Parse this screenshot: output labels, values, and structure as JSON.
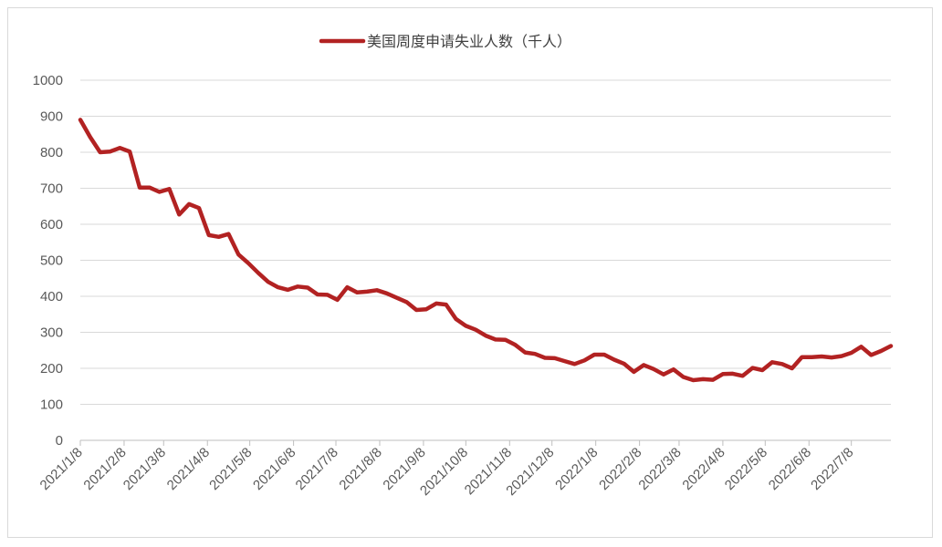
{
  "chart_data": {
    "type": "line",
    "legend_position": "top-center",
    "grid": "horizontal",
    "ylim": [
      0,
      1000
    ],
    "yticks": [
      "0",
      "100",
      "200",
      "300",
      "400",
      "500",
      "600",
      "700",
      "800",
      "900",
      "1000"
    ],
    "xtick_labels": [
      "2021/1/8",
      "2021/2/8",
      "2021/3/8",
      "2021/4/8",
      "2021/5/8",
      "2021/6/8",
      "2021/7/8",
      "2021/8/8",
      "2021/9/8",
      "2021/10/8",
      "2021/11/8",
      "2021/12/8",
      "2022/1/8",
      "2022/2/8",
      "2022/3/8",
      "2022/4/8",
      "2022/5/8",
      "2022/6/8",
      "2022/7/8"
    ],
    "series": [
      {
        "name": "美国周度申请失业人数（千人）",
        "color": "#B22222",
        "x": [
          "2021/1/8",
          "2021/1/15",
          "2021/1/22",
          "2021/1/29",
          "2021/2/5",
          "2021/2/12",
          "2021/2/19",
          "2021/2/26",
          "2021/3/5",
          "2021/3/12",
          "2021/3/19",
          "2021/3/26",
          "2021/4/2",
          "2021/4/9",
          "2021/4/16",
          "2021/4/23",
          "2021/4/30",
          "2021/5/7",
          "2021/5/14",
          "2021/5/21",
          "2021/5/28",
          "2021/6/4",
          "2021/6/11",
          "2021/6/18",
          "2021/6/25",
          "2021/7/2",
          "2021/7/9",
          "2021/7/16",
          "2021/7/23",
          "2021/7/30",
          "2021/8/6",
          "2021/8/13",
          "2021/8/20",
          "2021/8/27",
          "2021/9/3",
          "2021/9/10",
          "2021/9/17",
          "2021/9/24",
          "2021/10/1",
          "2021/10/8",
          "2021/10/15",
          "2021/10/22",
          "2021/10/29",
          "2021/11/5",
          "2021/11/12",
          "2021/11/19",
          "2021/11/26",
          "2021/12/3",
          "2021/12/10",
          "2021/12/17",
          "2021/12/24",
          "2021/12/31",
          "2022/1/7",
          "2022/1/14",
          "2022/1/21",
          "2022/1/28",
          "2022/2/4",
          "2022/2/11",
          "2022/2/18",
          "2022/2/25",
          "2022/3/4",
          "2022/3/11",
          "2022/3/18",
          "2022/3/25",
          "2022/4/1",
          "2022/4/8",
          "2022/4/15",
          "2022/4/22",
          "2022/4/29",
          "2022/5/6",
          "2022/5/13",
          "2022/5/20",
          "2022/5/27",
          "2022/6/3",
          "2022/6/10",
          "2022/6/17",
          "2022/6/24",
          "2022/7/1",
          "2022/7/8",
          "2022/7/15",
          "2022/7/22",
          "2022/7/29",
          "2022/8/5"
        ],
        "values": [
          890,
          842,
          800,
          802,
          812,
          802,
          702,
          702,
          690,
          698,
          627,
          656,
          645,
          570,
          565,
          573,
          516,
          492,
          465,
          440,
          425,
          418,
          427,
          424,
          405,
          404,
          390,
          425,
          411,
          413,
          417,
          408,
          396,
          384,
          362,
          364,
          380,
          377,
          337,
          318,
          307,
          291,
          280,
          279,
          265,
          244,
          240,
          229,
          228,
          220,
          212,
          222,
          238,
          238,
          224,
          213,
          190,
          209,
          198,
          183,
          197,
          176,
          167,
          170,
          168,
          184,
          185,
          179,
          201,
          195,
          217,
          212,
          200,
          231,
          231,
          233,
          230,
          234,
          243,
          260,
          237,
          248,
          262
        ]
      }
    ]
  }
}
